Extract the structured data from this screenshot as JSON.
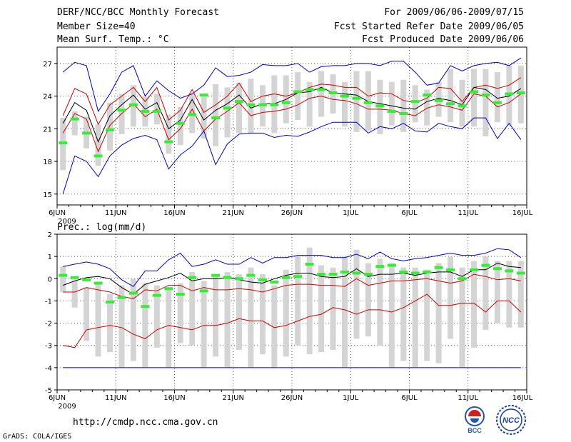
{
  "header": {
    "title_line1": "DERF/NCC/BCC Monthly Forecast",
    "title_line2": "Member Size=40",
    "title_line3": "Mean Surf. Temp.: °C",
    "right_line1": "For 2009/06/06-2009/07/15",
    "right_line2": "Fcst Started Refer Date 2009/06/05",
    "right_line3": "Fcst Produced Date 2009/06/06"
  },
  "prec_label": "Prec.: log(mm/d)",
  "footer": {
    "url": "http://cmdp.ncc.cma.gov.cn",
    "grads": "GrADS: COLA/IGES",
    "logo1": "BCC",
    "logo2": "NCC"
  },
  "colors": {
    "max_line": "#0000cc",
    "pct_line": "#cc0000",
    "mean_line": "#000000",
    "median": "#33ee33",
    "box": "#d4d4d4"
  },
  "chart_data": [
    {
      "type": "box-band",
      "title": "Mean Surf. Temp.: °C",
      "x_ticks": [
        "6JUN",
        "11JUN",
        "16JUN",
        "21JUN",
        "26JUN",
        "1JUL",
        "6JUL",
        "11JUL",
        "16JUL"
      ],
      "x_sub": "2009",
      "days": 40,
      "ylim": [
        14,
        28.5
      ],
      "yticks": [
        15,
        18,
        21,
        24,
        27
      ],
      "max": [
        26.2,
        27.1,
        26.8,
        22.6,
        24.2,
        26.2,
        26.8,
        24.0,
        25.4,
        24.5,
        23.8,
        24.2,
        25.0,
        26.6,
        25.8,
        25.9,
        26.2,
        26.9,
        26.8,
        26.8,
        27.0,
        26.2,
        26.7,
        26.8,
        26.8,
        27.0,
        27.0,
        26.8,
        27.2,
        27.2,
        26.2,
        25.0,
        25.2,
        26.8,
        26.3,
        26.8,
        27.0,
        27.1,
        26.8,
        27.5
      ],
      "min": [
        15.0,
        18.5,
        18.0,
        16.6,
        18.5,
        19.5,
        20.1,
        20.4,
        20.0,
        17.3,
        18.6,
        19.4,
        20.8,
        17.7,
        19.6,
        20.5,
        20.6,
        20.6,
        20.2,
        20.4,
        20.3,
        20.7,
        21.2,
        21.6,
        21.6,
        21.6,
        20.6,
        21.2,
        21.0,
        21.5,
        20.8,
        20.7,
        21.5,
        21.2,
        21.0,
        22.0,
        22.0,
        20.1,
        21.5,
        20.0
      ],
      "p_hi": [
        22.2,
        24.7,
        24.2,
        21.4,
        23.2,
        24.0,
        24.8,
        23.5,
        24.8,
        21.8,
        22.7,
        24.6,
        22.5,
        23.2,
        24.0,
        25.2,
        23.5,
        24.0,
        24.2,
        24.0,
        24.3,
        24.8,
        25.1,
        25.0,
        24.8,
        24.8,
        24.0,
        24.3,
        24.2,
        23.6,
        23.4,
        23.8,
        24.8,
        24.7,
        23.5,
        24.8,
        25.0,
        24.7,
        25.0,
        25.7
      ],
      "mean": [
        21.5,
        23.4,
        22.7,
        19.8,
        22.2,
        23.2,
        24.1,
        22.8,
        23.4,
        21.0,
        21.8,
        23.7,
        21.8,
        22.7,
        23.3,
        24.1,
        22.9,
        23.3,
        23.3,
        23.7,
        24.3,
        24.4,
        24.8,
        24.3,
        24.2,
        24.1,
        23.5,
        23.3,
        23.1,
        22.9,
        22.8,
        23.5,
        23.8,
        23.6,
        23.2,
        24.8,
        24.6,
        23.8,
        24.0,
        24.7
      ],
      "p_lo": [
        20.6,
        22.4,
        21.9,
        18.9,
        21.3,
        22.4,
        23.3,
        22.1,
        22.8,
        20.0,
        21.0,
        22.8,
        20.8,
        21.9,
        22.6,
        23.4,
        22.2,
        22.5,
        22.6,
        22.8,
        23.2,
        23.8,
        24.0,
        23.7,
        23.6,
        23.3,
        22.8,
        22.8,
        22.7,
        22.4,
        22.2,
        22.9,
        23.2,
        23.0,
        22.7,
        24.2,
        24.0,
        23.0,
        23.4,
        24.2
      ],
      "median": [
        19.7,
        21.9,
        20.6,
        18.5,
        20.9,
        22.7,
        23.2,
        22.6,
        22.6,
        19.8,
        21.5,
        22.3,
        24.1,
        22.0,
        22.9,
        23.5,
        23.2,
        23.2,
        23.2,
        23.4,
        24.4,
        24.6,
        24.6,
        24.3,
        24.0,
        23.8,
        23.4,
        23.1,
        22.6,
        22.4,
        23.5,
        24.1,
        23.6,
        23.3,
        23.1,
        24.4,
        24.1,
        23.4,
        24.2,
        24.3
      ],
      "box_hi": [
        22.0,
        22.6,
        22.1,
        21.4,
        23.4,
        24.2,
        25.0,
        23.9,
        24.2,
        22.3,
        23.0,
        24.2,
        24.0,
        25.1,
        24.8,
        25.2,
        25.6,
        25.0,
        25.9,
        25.9,
        26.2,
        25.3,
        26.3,
        26.0,
        25.3,
        26.3,
        26.3,
        25.5,
        25.3,
        25.5,
        25.0,
        24.6,
        25.3,
        26.5,
        25.5,
        26.5,
        26.5,
        26.2,
        26.8,
        26.8
      ],
      "box_lo": [
        17.2,
        20.4,
        19.2,
        17.6,
        19.0,
        20.5,
        21.2,
        21.2,
        21.4,
        18.7,
        19.5,
        20.6,
        20.1,
        19.4,
        20.2,
        20.6,
        20.6,
        21.2,
        20.6,
        21.5,
        21.8,
        21.2,
        22.1,
        22.4,
        21.2,
        20.7,
        20.8,
        20.5,
        21.3,
        20.7,
        21.6,
        21.3,
        22.1,
        21.6,
        21.2,
        21.2,
        20.3,
        21.6,
        21.3,
        21.5
      ]
    },
    {
      "type": "box-band",
      "title": "Prec.: log(mm/d)",
      "x_ticks": [
        "6JUN",
        "11JUN",
        "16JUN",
        "21JUN",
        "26JUN",
        "1JUL",
        "6JUL",
        "11JUL",
        "16JUL"
      ],
      "x_sub": "2009",
      "days": 40,
      "ylim": [
        -5,
        2
      ],
      "yticks": [
        -5,
        -4,
        -3,
        -2,
        -1,
        0,
        1,
        2
      ],
      "max": [
        0.55,
        0.65,
        0.75,
        0.65,
        0.45,
        -0.05,
        -0.35,
        0.35,
        0.35,
        0.85,
        1.15,
        0.55,
        0.65,
        0.85,
        0.65,
        0.65,
        0.95,
        0.7,
        0.95,
        0.95,
        1.05,
        1.05,
        1.05,
        0.95,
        0.95,
        1.1,
        0.9,
        1.2,
        0.9,
        0.8,
        0.9,
        0.95,
        1.05,
        1.15,
        1.05,
        1.05,
        1.15,
        1.35,
        1.3,
        0.95
      ],
      "min": [
        -4.0,
        -4.0,
        -4.0,
        -4.0,
        -4.0,
        -4.0,
        -4.0,
        -4.0,
        -4.0,
        -4.0,
        -4.0,
        -4.0,
        -4.0,
        -4.0,
        -4.0,
        -4.0,
        -4.0,
        -4.0,
        -4.0,
        -4.0,
        -4.0,
        -4.0,
        -4.0,
        -4.0,
        -4.0,
        -4.0,
        -4.0,
        -4.0,
        -4.0,
        -4.0,
        -4.0,
        -4.0,
        -4.0,
        -4.0,
        -4.0,
        -4.0,
        -4.0,
        -4.0,
        -4.0,
        -4.0
      ],
      "p_hi": [
        -0.6,
        -0.6,
        -0.4,
        -0.5,
        -0.6,
        -0.8,
        -0.9,
        -0.5,
        -0.55,
        -0.3,
        -0.3,
        -0.55,
        -0.4,
        -0.5,
        -0.5,
        -0.45,
        -0.5,
        -0.6,
        -0.45,
        -0.3,
        -0.25,
        -0.25,
        -0.3,
        -0.3,
        -0.35,
        0.0,
        -0.3,
        -0.2,
        -0.1,
        -0.1,
        -0.05,
        0.0,
        -0.1,
        -0.2,
        -0.1,
        0.2,
        0.1,
        -0.05,
        0.0,
        -0.1
      ],
      "mean": [
        -0.3,
        -0.1,
        0.05,
        0.1,
        0.0,
        -0.4,
        -0.7,
        -0.25,
        -0.1,
        0.05,
        0.25,
        -0.1,
        0.0,
        0.0,
        0.05,
        -0.05,
        -0.15,
        -0.2,
        0.0,
        0.15,
        0.25,
        0.25,
        0.1,
        0.05,
        0.1,
        0.45,
        0.1,
        0.2,
        0.2,
        0.25,
        0.15,
        0.25,
        0.3,
        0.3,
        0.1,
        0.4,
        0.4,
        0.7,
        0.55,
        0.5
      ],
      "p_lo": [
        -3.0,
        -3.1,
        -2.3,
        -2.2,
        -2.1,
        -2.2,
        -2.5,
        -2.7,
        -2.3,
        -2.1,
        -2.2,
        -2.3,
        -2.1,
        -2.1,
        -2.0,
        -1.8,
        -1.9,
        -1.9,
        -2.2,
        -2.1,
        -1.9,
        -1.7,
        -1.6,
        -1.3,
        -1.4,
        -1.6,
        -1.4,
        -1.4,
        -1.5,
        -1.3,
        -1.0,
        -0.7,
        -1.2,
        -1.2,
        -1.1,
        -1.1,
        -1.5,
        -1.0,
        -1.0,
        -1.5
      ],
      "median": [
        0.15,
        0.05,
        -0.05,
        -0.2,
        -1.05,
        -0.85,
        -0.65,
        -1.25,
        -0.75,
        -0.45,
        -0.7,
        0.05,
        -0.55,
        0.15,
        0.05,
        0.0,
        0.15,
        -0.05,
        -0.15,
        0.05,
        0.1,
        0.65,
        0.2,
        0.2,
        0.3,
        0.25,
        0.2,
        0.55,
        0.6,
        0.3,
        0.25,
        0.3,
        0.5,
        0.4,
        0.0,
        0.4,
        0.6,
        0.45,
        0.35,
        0.25
      ],
      "box_hi": [
        0.55,
        -0.1,
        -0.4,
        -0.2,
        -0.7,
        -0.3,
        0.0,
        -0.2,
        -0.3,
        -0.5,
        -0.2,
        0.3,
        -0.1,
        0.2,
        0.3,
        0.2,
        0.5,
        0.2,
        -0.3,
        0.4,
        1.0,
        1.4,
        0.6,
        0.5,
        1.0,
        1.3,
        0.7,
        0.9,
        0.7,
        0.5,
        0.5,
        0.4,
        0.7,
        1.0,
        0.5,
        0.8,
        1.0,
        0.8,
        0.8,
        0.8
      ],
      "box_lo": [
        -0.6,
        -1.3,
        -2.8,
        -3.5,
        -3.3,
        -4.0,
        -3.7,
        -4.0,
        -3.1,
        -4.0,
        -2.9,
        -3.0,
        -4.0,
        -3.5,
        -4.0,
        -3.2,
        -4.0,
        -3.4,
        -4.0,
        -3.5,
        -3.0,
        -3.4,
        -3.3,
        -3.2,
        -4.0,
        -2.7,
        -2.6,
        -3.0,
        -4.0,
        -3.7,
        -4.0,
        -3.7,
        -3.8,
        -2.7,
        -4.0,
        -3.1,
        -2.3,
        -2.0,
        -2.2,
        -2.2
      ]
    }
  ]
}
